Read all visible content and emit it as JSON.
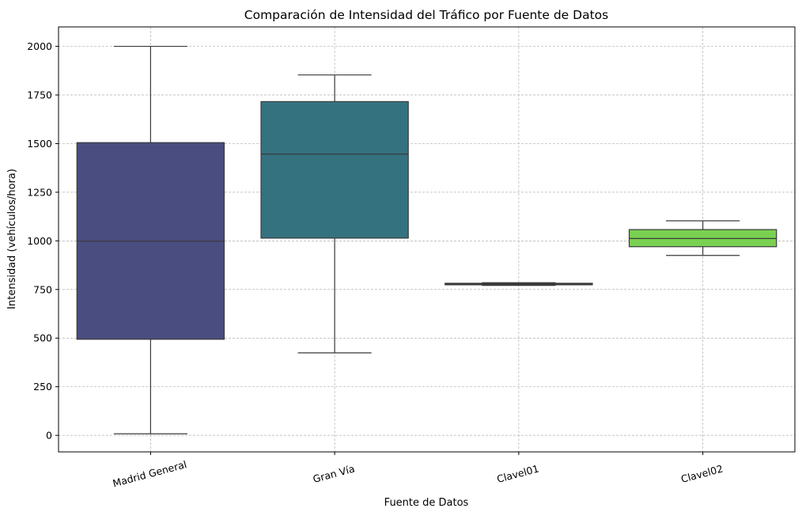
{
  "chart_data": {
    "type": "box",
    "title": "Comparación de Intensidad del Tráfico por Fuente de Datos",
    "xlabel": "Fuente de Datos",
    "ylabel": "Intensidad (vehículos/hora)",
    "ylim": [
      -85,
      2100
    ],
    "yticks": [
      0,
      250,
      500,
      750,
      1000,
      1250,
      1500,
      1750,
      2000
    ],
    "grid": true,
    "categories": [
      "Madrid General",
      "Gran Vía",
      "Clavel01",
      "Clavel02"
    ],
    "boxes": [
      {
        "name": "Madrid General",
        "min": 8,
        "q1": 494,
        "median": 998,
        "q3": 1505,
        "max": 2000,
        "color": "#4a4d80"
      },
      {
        "name": "Gran Vía",
        "min": 424,
        "q1": 1014,
        "median": 1446,
        "q3": 1716,
        "max": 1853,
        "color": "#357280"
      },
      {
        "name": "Clavel01",
        "min": 771,
        "q1": 774,
        "median": 778,
        "q3": 782,
        "max": 785,
        "color": "#3cb47a"
      },
      {
        "name": "Clavel02",
        "min": 925,
        "q1": 970,
        "median": 1012,
        "q3": 1058,
        "max": 1103,
        "color": "#7ad151"
      }
    ]
  }
}
